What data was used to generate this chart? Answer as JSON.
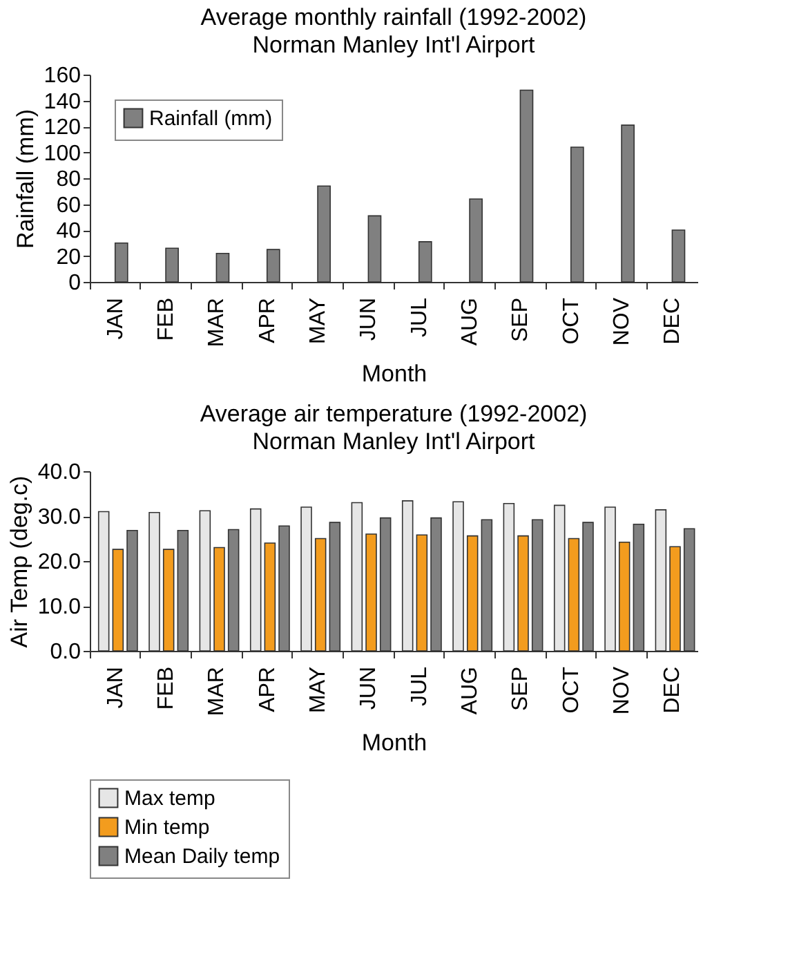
{
  "chart_data": [
    {
      "type": "bar",
      "title": "Average monthly rainfall (1992-2002)",
      "subtitle": "Norman Manley Int'l Airport",
      "xlabel": "Month",
      "ylabel": "Rainfall (mm)",
      "categories": [
        "JAN",
        "FEB",
        "MAR",
        "APR",
        "MAY",
        "JUN",
        "JUL",
        "AUG",
        "SEP",
        "OCT",
        "NOV",
        "DEC"
      ],
      "series": [
        {
          "name": "Rainfall (mm)",
          "color": "#808080",
          "values": [
            30,
            26,
            22,
            25,
            74,
            51,
            31,
            64,
            148,
            104,
            121,
            40
          ]
        }
      ],
      "ylim": [
        0,
        160
      ],
      "yticks": [
        0,
        20,
        40,
        60,
        80,
        100,
        120,
        140,
        160
      ],
      "grid": false,
      "legend": "top left"
    },
    {
      "type": "bar",
      "title": "Average air temperature (1992-2002)",
      "subtitle": "Norman Manley Int'l Airport",
      "xlabel": "Month",
      "ylabel": "Air Temp (deg.c)",
      "categories": [
        "JAN",
        "FEB",
        "MAR",
        "APR",
        "MAY",
        "JUN",
        "JUL",
        "AUG",
        "SEP",
        "OCT",
        "NOV",
        "DEC"
      ],
      "series": [
        {
          "name": "Max temp",
          "color": "#e6e6e6",
          "values": [
            31.0,
            30.8,
            31.2,
            31.6,
            32.0,
            33.0,
            33.4,
            33.2,
            32.8,
            32.4,
            32.0,
            31.4
          ]
        },
        {
          "name": "Min temp",
          "color": "#f39c1e",
          "values": [
            22.6,
            22.6,
            23.0,
            24.0,
            25.0,
            26.0,
            25.8,
            25.6,
            25.6,
            25.0,
            24.2,
            23.2
          ]
        },
        {
          "name": "Mean Daily temp",
          "color": "#808080",
          "values": [
            26.8,
            26.8,
            27.0,
            27.8,
            28.6,
            29.6,
            29.6,
            29.2,
            29.2,
            28.6,
            28.2,
            27.2
          ]
        }
      ],
      "ylim": [
        0,
        40
      ],
      "yticks": [
        {
          "value": 0,
          "label": "0.0"
        },
        {
          "value": 10,
          "label": "10.0"
        },
        {
          "value": 20,
          "label": "20.0"
        },
        {
          "value": 30,
          "label": "30.0"
        },
        {
          "value": 40,
          "label": "40.0"
        }
      ],
      "grid": false,
      "legend": "bottom"
    }
  ]
}
